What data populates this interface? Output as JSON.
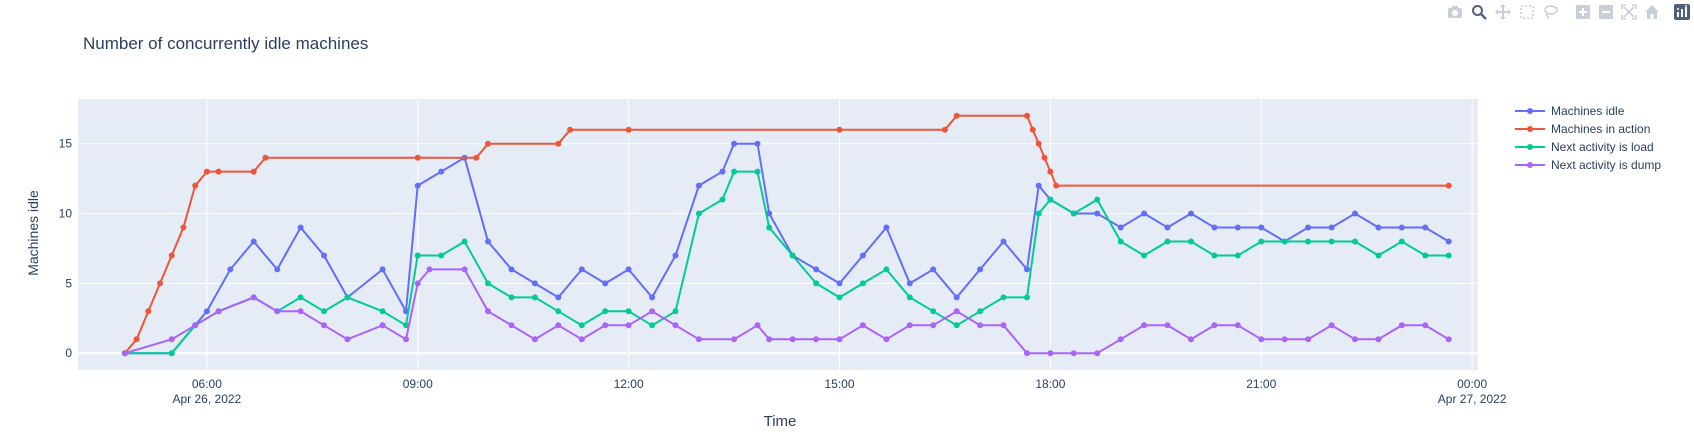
{
  "chart_data": {
    "type": "line",
    "title": "Number of concurrently idle machines",
    "xlabel": "Time",
    "ylabel": "Machines idle",
    "x_start": "2022-04-26 04:50",
    "x_end": "2022-04-26 23:40",
    "xlim": [
      "2022-04-26 04:10",
      "2022-04-27 00:05"
    ],
    "ylim": [
      -1.2,
      18.2
    ],
    "x_ticks": [
      {
        "time": "2022-04-26 06:00",
        "label": "06:00",
        "sublabel": "Apr 26, 2022"
      },
      {
        "time": "2022-04-26 09:00",
        "label": "09:00",
        "sublabel": ""
      },
      {
        "time": "2022-04-26 12:00",
        "label": "12:00",
        "sublabel": ""
      },
      {
        "time": "2022-04-26 15:00",
        "label": "15:00",
        "sublabel": ""
      },
      {
        "time": "2022-04-26 18:00",
        "label": "18:00",
        "sublabel": ""
      },
      {
        "time": "2022-04-26 21:00",
        "label": "21:00",
        "sublabel": ""
      },
      {
        "time": "2022-04-27 00:00",
        "label": "00:00",
        "sublabel": "Apr 27, 2022"
      }
    ],
    "y_ticks": [
      0,
      5,
      10,
      15
    ],
    "grid": true,
    "legend_position": "top-right",
    "plot_bg": "#e5ecf6",
    "series": [
      {
        "name": "Machines idle",
        "color": "#636efa",
        "mode": "lines+markers",
        "points": [
          [
            "04:50",
            0
          ],
          [
            "05:30",
            0
          ],
          [
            "06:00",
            3
          ],
          [
            "06:20",
            6
          ],
          [
            "06:40",
            8
          ],
          [
            "07:00",
            6
          ],
          [
            "07:20",
            9
          ],
          [
            "07:40",
            7
          ],
          [
            "08:00",
            4
          ],
          [
            "08:30",
            6
          ],
          [
            "08:50",
            3
          ],
          [
            "09:00",
            12
          ],
          [
            "09:20",
            13
          ],
          [
            "09:40",
            14
          ],
          [
            "10:00",
            8
          ],
          [
            "10:20",
            6
          ],
          [
            "10:40",
            5
          ],
          [
            "11:00",
            4
          ],
          [
            "11:20",
            6
          ],
          [
            "11:40",
            5
          ],
          [
            "12:00",
            6
          ],
          [
            "12:20",
            4
          ],
          [
            "12:40",
            7
          ],
          [
            "13:00",
            12
          ],
          [
            "13:20",
            13
          ],
          [
            "13:30",
            15
          ],
          [
            "13:50",
            15
          ],
          [
            "14:00",
            10
          ],
          [
            "14:20",
            7
          ],
          [
            "14:40",
            6
          ],
          [
            "15:00",
            5
          ],
          [
            "15:20",
            7
          ],
          [
            "15:40",
            9
          ],
          [
            "16:00",
            5
          ],
          [
            "16:20",
            6
          ],
          [
            "16:40",
            4
          ],
          [
            "17:00",
            6
          ],
          [
            "17:20",
            8
          ],
          [
            "17:40",
            6
          ],
          [
            "17:50",
            12
          ],
          [
            "18:00",
            11
          ],
          [
            "18:20",
            10
          ],
          [
            "18:40",
            10
          ],
          [
            "19:00",
            9
          ],
          [
            "19:20",
            10
          ],
          [
            "19:40",
            9
          ],
          [
            "20:00",
            10
          ],
          [
            "20:20",
            9
          ],
          [
            "20:40",
            9
          ],
          [
            "21:00",
            9
          ],
          [
            "21:20",
            8
          ],
          [
            "21:40",
            9
          ],
          [
            "22:00",
            9
          ],
          [
            "22:20",
            10
          ],
          [
            "22:40",
            9
          ],
          [
            "23:00",
            9
          ],
          [
            "23:20",
            9
          ],
          [
            "23:40",
            8
          ]
        ]
      },
      {
        "name": "Machines in action",
        "color": "#ef553b",
        "mode": "lines+markers",
        "points": [
          [
            "04:50",
            0
          ],
          [
            "05:00",
            1
          ],
          [
            "05:10",
            3
          ],
          [
            "05:20",
            5
          ],
          [
            "05:30",
            7
          ],
          [
            "05:40",
            9
          ],
          [
            "05:50",
            12
          ],
          [
            "06:00",
            13
          ],
          [
            "06:10",
            13
          ],
          [
            "06:40",
            13
          ],
          [
            "06:50",
            14
          ],
          [
            "09:00",
            14
          ],
          [
            "09:50",
            14
          ],
          [
            "10:00",
            15
          ],
          [
            "11:00",
            15
          ],
          [
            "11:10",
            16
          ],
          [
            "12:00",
            16
          ],
          [
            "15:00",
            16
          ],
          [
            "16:30",
            16
          ],
          [
            "16:40",
            17
          ],
          [
            "17:40",
            17
          ],
          [
            "17:45",
            16
          ],
          [
            "17:50",
            15
          ],
          [
            "17:55",
            14
          ],
          [
            "18:00",
            13
          ],
          [
            "18:05",
            12
          ],
          [
            "23:40",
            12
          ]
        ]
      },
      {
        "name": "Next activity is load",
        "color": "#00cc96",
        "mode": "lines+markers",
        "points": [
          [
            "04:50",
            0
          ],
          [
            "05:30",
            0
          ],
          [
            "05:50",
            2
          ],
          [
            "06:10",
            3
          ],
          [
            "06:40",
            4
          ],
          [
            "07:00",
            3
          ],
          [
            "07:20",
            4
          ],
          [
            "07:40",
            3
          ],
          [
            "08:00",
            4
          ],
          [
            "08:30",
            3
          ],
          [
            "08:50",
            2
          ],
          [
            "09:00",
            7
          ],
          [
            "09:20",
            7
          ],
          [
            "09:40",
            8
          ],
          [
            "10:00",
            5
          ],
          [
            "10:20",
            4
          ],
          [
            "10:40",
            4
          ],
          [
            "11:00",
            3
          ],
          [
            "11:20",
            2
          ],
          [
            "11:40",
            3
          ],
          [
            "12:00",
            3
          ],
          [
            "12:20",
            2
          ],
          [
            "12:40",
            3
          ],
          [
            "13:00",
            10
          ],
          [
            "13:20",
            11
          ],
          [
            "13:30",
            13
          ],
          [
            "13:50",
            13
          ],
          [
            "14:00",
            9
          ],
          [
            "14:20",
            7
          ],
          [
            "14:40",
            5
          ],
          [
            "15:00",
            4
          ],
          [
            "15:20",
            5
          ],
          [
            "15:40",
            6
          ],
          [
            "16:00",
            4
          ],
          [
            "16:20",
            3
          ],
          [
            "16:40",
            2
          ],
          [
            "17:00",
            3
          ],
          [
            "17:20",
            4
          ],
          [
            "17:40",
            4
          ],
          [
            "17:50",
            10
          ],
          [
            "18:00",
            11
          ],
          [
            "18:20",
            10
          ],
          [
            "18:40",
            11
          ],
          [
            "19:00",
            8
          ],
          [
            "19:20",
            7
          ],
          [
            "19:40",
            8
          ],
          [
            "20:00",
            8
          ],
          [
            "20:20",
            7
          ],
          [
            "20:40",
            7
          ],
          [
            "21:00",
            8
          ],
          [
            "21:20",
            8
          ],
          [
            "21:40",
            8
          ],
          [
            "22:00",
            8
          ],
          [
            "22:20",
            8
          ],
          [
            "22:40",
            7
          ],
          [
            "23:00",
            8
          ],
          [
            "23:20",
            7
          ],
          [
            "23:40",
            7
          ]
        ]
      },
      {
        "name": "Next activity is dump",
        "color": "#ab63fa",
        "mode": "lines+markers",
        "points": [
          [
            "04:50",
            0
          ],
          [
            "05:30",
            1
          ],
          [
            "05:50",
            2
          ],
          [
            "06:10",
            3
          ],
          [
            "06:40",
            4
          ],
          [
            "07:00",
            3
          ],
          [
            "07:20",
            3
          ],
          [
            "07:40",
            2
          ],
          [
            "08:00",
            1
          ],
          [
            "08:30",
            2
          ],
          [
            "08:50",
            1
          ],
          [
            "09:00",
            5
          ],
          [
            "09:10",
            6
          ],
          [
            "09:40",
            6
          ],
          [
            "10:00",
            3
          ],
          [
            "10:20",
            2
          ],
          [
            "10:40",
            1
          ],
          [
            "11:00",
            2
          ],
          [
            "11:20",
            1
          ],
          [
            "11:40",
            2
          ],
          [
            "12:00",
            2
          ],
          [
            "12:20",
            3
          ],
          [
            "12:40",
            2
          ],
          [
            "13:00",
            1
          ],
          [
            "13:30",
            1
          ],
          [
            "13:50",
            2
          ],
          [
            "14:00",
            1
          ],
          [
            "14:20",
            1
          ],
          [
            "14:40",
            1
          ],
          [
            "15:00",
            1
          ],
          [
            "15:20",
            2
          ],
          [
            "15:40",
            1
          ],
          [
            "16:00",
            2
          ],
          [
            "16:20",
            2
          ],
          [
            "16:40",
            3
          ],
          [
            "17:00",
            2
          ],
          [
            "17:20",
            2
          ],
          [
            "17:40",
            0
          ],
          [
            "18:00",
            0
          ],
          [
            "18:20",
            0
          ],
          [
            "18:40",
            0
          ],
          [
            "19:00",
            1
          ],
          [
            "19:20",
            2
          ],
          [
            "19:40",
            2
          ],
          [
            "20:00",
            1
          ],
          [
            "20:20",
            2
          ],
          [
            "20:40",
            2
          ],
          [
            "21:00",
            1
          ],
          [
            "21:20",
            1
          ],
          [
            "21:40",
            1
          ],
          [
            "22:00",
            2
          ],
          [
            "22:20",
            1
          ],
          [
            "22:40",
            1
          ],
          [
            "23:00",
            2
          ],
          [
            "23:20",
            2
          ],
          [
            "23:40",
            1
          ]
        ]
      }
    ]
  },
  "toolbar": {
    "buttons": [
      "camera-icon",
      "zoom-icon",
      "pan-icon",
      "box-select-icon",
      "lasso-select-icon",
      "zoom-in-icon",
      "zoom-out-icon",
      "autoscale-icon",
      "home-icon",
      "plotly-logo-icon"
    ]
  }
}
